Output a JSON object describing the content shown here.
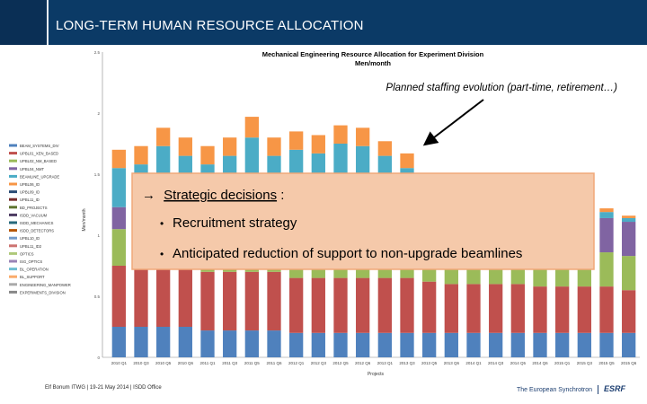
{
  "slide": {
    "title": "LONG-TERM HUMAN RESOURCE ALLOCATION",
    "footer_left": "Elf Bonum ITWG | 19-21 May 2014 | ISDD Office",
    "footer_right": "The European Synchrotron",
    "logo_text": "ESRF"
  },
  "callouts": {
    "planned_note": "Planned staffing evolution (part-time, retirement…)",
    "decisions_heading": "Strategic decisions",
    "decisions_colon": ":",
    "decisions_arrow": "→",
    "bullets": [
      "Recruitment strategy",
      "Anticipated reduction of support to non-upgrade beamlines"
    ]
  },
  "colors": {
    "header_bg": "#0b3a66",
    "callout_bg": "#f5c9aa",
    "callout_border": "#f0a879"
  },
  "chart_data": {
    "type": "bar",
    "title": "Mechanical Engineering Resource Allocation for Experiment Division",
    "subtitle": "Men/month",
    "xlabel": "Projects",
    "ylabel": "Men/month",
    "ylim": [
      0,
      2.5
    ],
    "yticks": [
      0,
      0.5,
      1,
      1.5,
      2,
      2.5
    ],
    "stacked": true,
    "legend_position": "left",
    "x_ticks": [
      "2010 Q1",
      "2010 Q3",
      "2010 Q5",
      "2010 Q6",
      "2011 Q1",
      "2011 Q3",
      "2011 Q5",
      "2011 Q6",
      "2012 Q1",
      "2012 Q3",
      "2012 Q5",
      "2012 Q6",
      "2013 Q1",
      "2013 Q3",
      "2013 Q5",
      "2013 Q6",
      "2014 Q1",
      "2014 Q3",
      "2014 Q5",
      "2014 Q6",
      "2015 Q1",
      "2015 Q3",
      "2015 Q5",
      "2015 Q6"
    ],
    "legend": [
      {
        "name": "BEAM_SYSTEMS_DIV",
        "color": "#4f81bd"
      },
      {
        "name": "UPBL01_XEN_BASED",
        "color": "#c0504d"
      },
      {
        "name": "UPBL02_NM_BASED",
        "color": "#9bbb59"
      },
      {
        "name": "UPBL04_NMT",
        "color": "#8064a2"
      },
      {
        "name": "BEAMLINE_UPGRADE",
        "color": "#4bacc6"
      },
      {
        "name": "UPBL06_ID",
        "color": "#f79646"
      },
      {
        "name": "UPBL09_ID",
        "color": "#2c4d75"
      },
      {
        "name": "UPBL11_ID",
        "color": "#772c2a"
      },
      {
        "name": "BD_PROJECTS",
        "color": "#5f7530"
      },
      {
        "name": "ISDD_VACUUM",
        "color": "#4d3b62"
      },
      {
        "name": "ISDD_MECHANICS",
        "color": "#276a7c"
      },
      {
        "name": "ISDD_DETECTORS",
        "color": "#b65708"
      },
      {
        "name": "UPBL10_ID",
        "color": "#729aca"
      },
      {
        "name": "UPBL11_ID2",
        "color": "#cd7371"
      },
      {
        "name": "OPTICS",
        "color": "#afc97a"
      },
      {
        "name": "ISG_OPTICS",
        "color": "#9983b5"
      },
      {
        "name": "BL_OPERATION",
        "color": "#6fbdd1"
      },
      {
        "name": "BL_SUPPORT",
        "color": "#f9ab6b"
      },
      {
        "name": "ENGINEERING_MANPOWER",
        "color": "#aaaaaa"
      },
      {
        "name": "EXPERIMENTS_DIVISION",
        "color": "#888888"
      }
    ],
    "series": [
      {
        "name": "BEAM_SYSTEMS_DIV",
        "color": "#4f81bd",
        "values": [
          0.25,
          0.25,
          0.25,
          0.25,
          0.22,
          0.22,
          0.22,
          0.22,
          0.2,
          0.2,
          0.2,
          0.2,
          0.2,
          0.2,
          0.2,
          0.2,
          0.2,
          0.2,
          0.2,
          0.2,
          0.2,
          0.2,
          0.2,
          0.2
        ]
      },
      {
        "name": "UPBL01_XEN_BASED",
        "color": "#c0504d",
        "values": [
          0.5,
          0.5,
          0.5,
          0.5,
          0.48,
          0.48,
          0.48,
          0.48,
          0.45,
          0.45,
          0.45,
          0.45,
          0.45,
          0.45,
          0.42,
          0.4,
          0.4,
          0.4,
          0.4,
          0.38,
          0.38,
          0.38,
          0.38,
          0.35
        ]
      },
      {
        "name": "UPBL02_NM_BASED",
        "color": "#9bbb59",
        "values": [
          0.3,
          0.3,
          0.3,
          0.3,
          0.3,
          0.3,
          0.3,
          0.3,
          0.3,
          0.3,
          0.3,
          0.3,
          0.3,
          0.3,
          0.28,
          0.28,
          0.28,
          0.28,
          0.28,
          0.28,
          0.28,
          0.28,
          0.28,
          0.28
        ]
      },
      {
        "name": "UPBL04_NMT",
        "color": "#8064a2",
        "values": [
          0.18,
          0.18,
          0.18,
          0.18,
          0.2,
          0.2,
          0.2,
          0.2,
          0.2,
          0.2,
          0.2,
          0.2,
          0.2,
          0.2,
          0.2,
          0.22,
          0.22,
          0.22,
          0.22,
          0.24,
          0.25,
          0.27,
          0.28,
          0.28
        ]
      },
      {
        "name": "BEAMLINE_UPGRADE",
        "color": "#4bacc6",
        "values": [
          0.32,
          0.35,
          0.5,
          0.42,
          0.38,
          0.45,
          0.6,
          0.45,
          0.55,
          0.52,
          0.6,
          0.58,
          0.5,
          0.4,
          0.3,
          0.2,
          0.15,
          0.15,
          0.1,
          0.1,
          0.08,
          0.05,
          0.05,
          0.03
        ]
      },
      {
        "name": "UPBL06_ID",
        "color": "#f79646",
        "values": [
          0.15,
          0.15,
          0.15,
          0.15,
          0.15,
          0.15,
          0.17,
          0.15,
          0.15,
          0.15,
          0.15,
          0.15,
          0.12,
          0.12,
          0.1,
          0.1,
          0.08,
          0.05,
          0.05,
          0.05,
          0.04,
          0.03,
          0.03,
          0.02
        ]
      },
      {
        "name": "UPBL09_ID",
        "color": "#2c4d75",
        "values": [
          0,
          0,
          0,
          0,
          0,
          0,
          0,
          0,
          0,
          0,
          0,
          0,
          0,
          0,
          0,
          0,
          0,
          0,
          0,
          0,
          0,
          0,
          0,
          0
        ]
      }
    ]
  }
}
